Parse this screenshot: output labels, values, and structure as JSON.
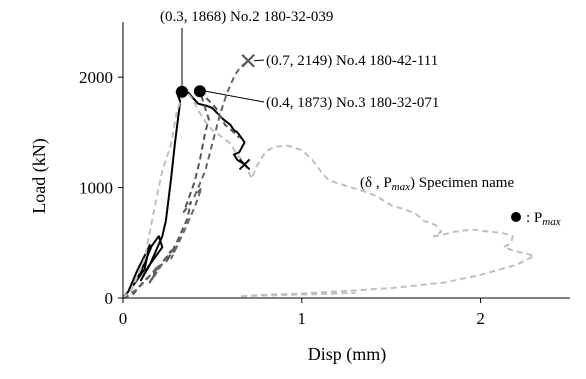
{
  "chart_data": {
    "type": "line",
    "xlabel": "Disp (mm)",
    "ylabel": "Load (kN)",
    "xlim": [
      0,
      2.5
    ],
    "ylim": [
      0,
      2500
    ],
    "x_ticks": [
      "0",
      "1",
      "2"
    ],
    "y_ticks": [
      "0",
      "1000",
      "2000"
    ],
    "grid": false,
    "series": [
      {
        "name": "No.2 180-32-039",
        "color": "#000000",
        "dash": "solid",
        "marker": "circle",
        "points": [
          [
            0,
            0
          ],
          [
            0.03,
            60
          ],
          [
            0.08,
            250
          ],
          [
            0.12,
            380
          ],
          [
            0.15,
            480
          ],
          [
            0.12,
            260
          ],
          [
            0.06,
            120
          ],
          [
            0.1,
            240
          ],
          [
            0.16,
            470
          ],
          [
            0.2,
            560
          ],
          [
            0.22,
            460
          ],
          [
            0.14,
            280
          ],
          [
            0.1,
            160
          ],
          [
            0.15,
            300
          ],
          [
            0.22,
            560
          ],
          [
            0.24,
            700
          ],
          [
            0.27,
            1100
          ],
          [
            0.29,
            1400
          ],
          [
            0.31,
            1650
          ],
          [
            0.32,
            1780
          ],
          [
            0.3,
            1868
          ],
          [
            0.36,
            1868
          ],
          [
            0.42,
            1760
          ],
          [
            0.47,
            1740
          ],
          [
            0.5,
            1720
          ],
          [
            0.56,
            1620
          ],
          [
            0.6,
            1570
          ],
          [
            0.62,
            1520
          ],
          [
            0.64,
            1500
          ],
          [
            0.68,
            1410
          ],
          [
            0.65,
            1320
          ],
          [
            0.62,
            1300
          ],
          [
            0.64,
            1250
          ],
          [
            0.66,
            1230
          ],
          [
            0.68,
            1210
          ]
        ],
        "end_point": [
          0.68,
          1210
        ]
      },
      {
        "name": "No.3 180-32-071",
        "color": "#555555",
        "dash": "dashed",
        "marker": "circle",
        "points": [
          [
            0,
            0
          ],
          [
            0.06,
            40
          ],
          [
            0.12,
            160
          ],
          [
            0.18,
            240
          ],
          [
            0.15,
            140
          ],
          [
            0.2,
            280
          ],
          [
            0.27,
            430
          ],
          [
            0.24,
            320
          ],
          [
            0.3,
            500
          ],
          [
            0.36,
            720
          ],
          [
            0.38,
            870
          ],
          [
            0.34,
            780
          ],
          [
            0.4,
            1050
          ],
          [
            0.43,
            1250
          ],
          [
            0.46,
            1500
          ],
          [
            0.48,
            1620
          ],
          [
            0.43,
            1873
          ],
          [
            0.52,
            1720
          ],
          [
            0.57,
            1570
          ],
          [
            0.6,
            1530
          ],
          [
            0.62,
            1500
          ],
          [
            0.64,
            1470
          ],
          [
            0.65,
            1450
          ]
        ],
        "end_point": null
      },
      {
        "name": "No.4 180-42-111",
        "color": "#666666",
        "dash": "dashed",
        "marker": "cross",
        "points": [
          [
            0,
            0
          ],
          [
            0.08,
            80
          ],
          [
            0.15,
            200
          ],
          [
            0.2,
            300
          ],
          [
            0.16,
            160
          ],
          [
            0.24,
            360
          ],
          [
            0.3,
            470
          ],
          [
            0.27,
            360
          ],
          [
            0.34,
            600
          ],
          [
            0.4,
            820
          ],
          [
            0.44,
            1000
          ],
          [
            0.4,
            920
          ],
          [
            0.46,
            1150
          ],
          [
            0.5,
            1400
          ],
          [
            0.54,
            1650
          ],
          [
            0.58,
            1850
          ],
          [
            0.62,
            2000
          ],
          [
            0.65,
            2080
          ],
          [
            0.7,
            2149
          ]
        ],
        "end_point": [
          0.7,
          2149
        ]
      },
      {
        "name": "",
        "color": "#bfbfbf",
        "dash": "dashed",
        "marker": null,
        "points": [
          [
            0,
            0
          ],
          [
            0.05,
            80
          ],
          [
            0.12,
            350
          ],
          [
            0.18,
            850
          ],
          [
            0.22,
            1150
          ],
          [
            0.27,
            1400
          ],
          [
            0.3,
            1680
          ],
          [
            0.33,
            1830
          ],
          [
            0.36,
            1855
          ],
          [
            0.39,
            1800
          ],
          [
            0.42,
            1700
          ],
          [
            0.46,
            1600
          ],
          [
            0.5,
            1520
          ],
          [
            0.56,
            1450
          ],
          [
            0.6,
            1400
          ],
          [
            0.63,
            1320
          ],
          [
            0.66,
            1260
          ],
          [
            0.68,
            1200
          ],
          [
            0.7,
            1150
          ],
          [
            0.72,
            1080
          ],
          [
            0.75,
            1200
          ],
          [
            0.8,
            1330
          ],
          [
            0.85,
            1370
          ],
          [
            0.92,
            1380
          ],
          [
            1.0,
            1340
          ],
          [
            1.06,
            1250
          ],
          [
            1.1,
            1160
          ],
          [
            1.12,
            1120
          ],
          [
            1.15,
            1070
          ],
          [
            1.2,
            1040
          ],
          [
            1.28,
            1000
          ],
          [
            1.36,
            960
          ],
          [
            1.42,
            920
          ],
          [
            1.5,
            840
          ],
          [
            1.58,
            800
          ],
          [
            1.64,
            760
          ],
          [
            1.68,
            700
          ],
          [
            1.7,
            690
          ],
          [
            1.75,
            660
          ],
          [
            1.78,
            600
          ],
          [
            1.74,
            560
          ],
          [
            1.78,
            570
          ],
          [
            1.85,
            600
          ],
          [
            1.95,
            620
          ],
          [
            2.05,
            600
          ],
          [
            2.12,
            590
          ],
          [
            2.18,
            560
          ],
          [
            2.17,
            500
          ],
          [
            2.13,
            460
          ],
          [
            2.18,
            430
          ],
          [
            2.26,
            400
          ],
          [
            2.3,
            380
          ],
          [
            2.2,
            300
          ],
          [
            2.0,
            210
          ],
          [
            1.8,
            140
          ],
          [
            1.5,
            90
          ],
          [
            1.2,
            60
          ],
          [
            1.0,
            40
          ],
          [
            0.8,
            30
          ],
          [
            0.7,
            20
          ],
          [
            0.65,
            15
          ],
          [
            0.72,
            20
          ],
          [
            0.85,
            25
          ],
          [
            1.1,
            35
          ],
          [
            1.3,
            45
          ]
        ],
        "end_point": null
      }
    ],
    "annotations": [
      {
        "series": "No.2 180-32-039",
        "x": 0.3,
        "y": 1868,
        "text": "(0.3, 1868) No.2 180-32-039"
      },
      {
        "series": "No.4 180-42-111",
        "x": 0.7,
        "y": 2149,
        "text": "(0.7, 2149) No.4 180-42-111"
      },
      {
        "series": "No.3 180-32-071",
        "x": 0.4,
        "y": 1873,
        "text": "(0.4, 1873) No.3 180-32-071"
      }
    ],
    "legend": {
      "title_parts": [
        "(δ , P",
        "max",
        ") Specimen name"
      ],
      "marker_parts": [
        ": P",
        "max"
      ]
    }
  }
}
